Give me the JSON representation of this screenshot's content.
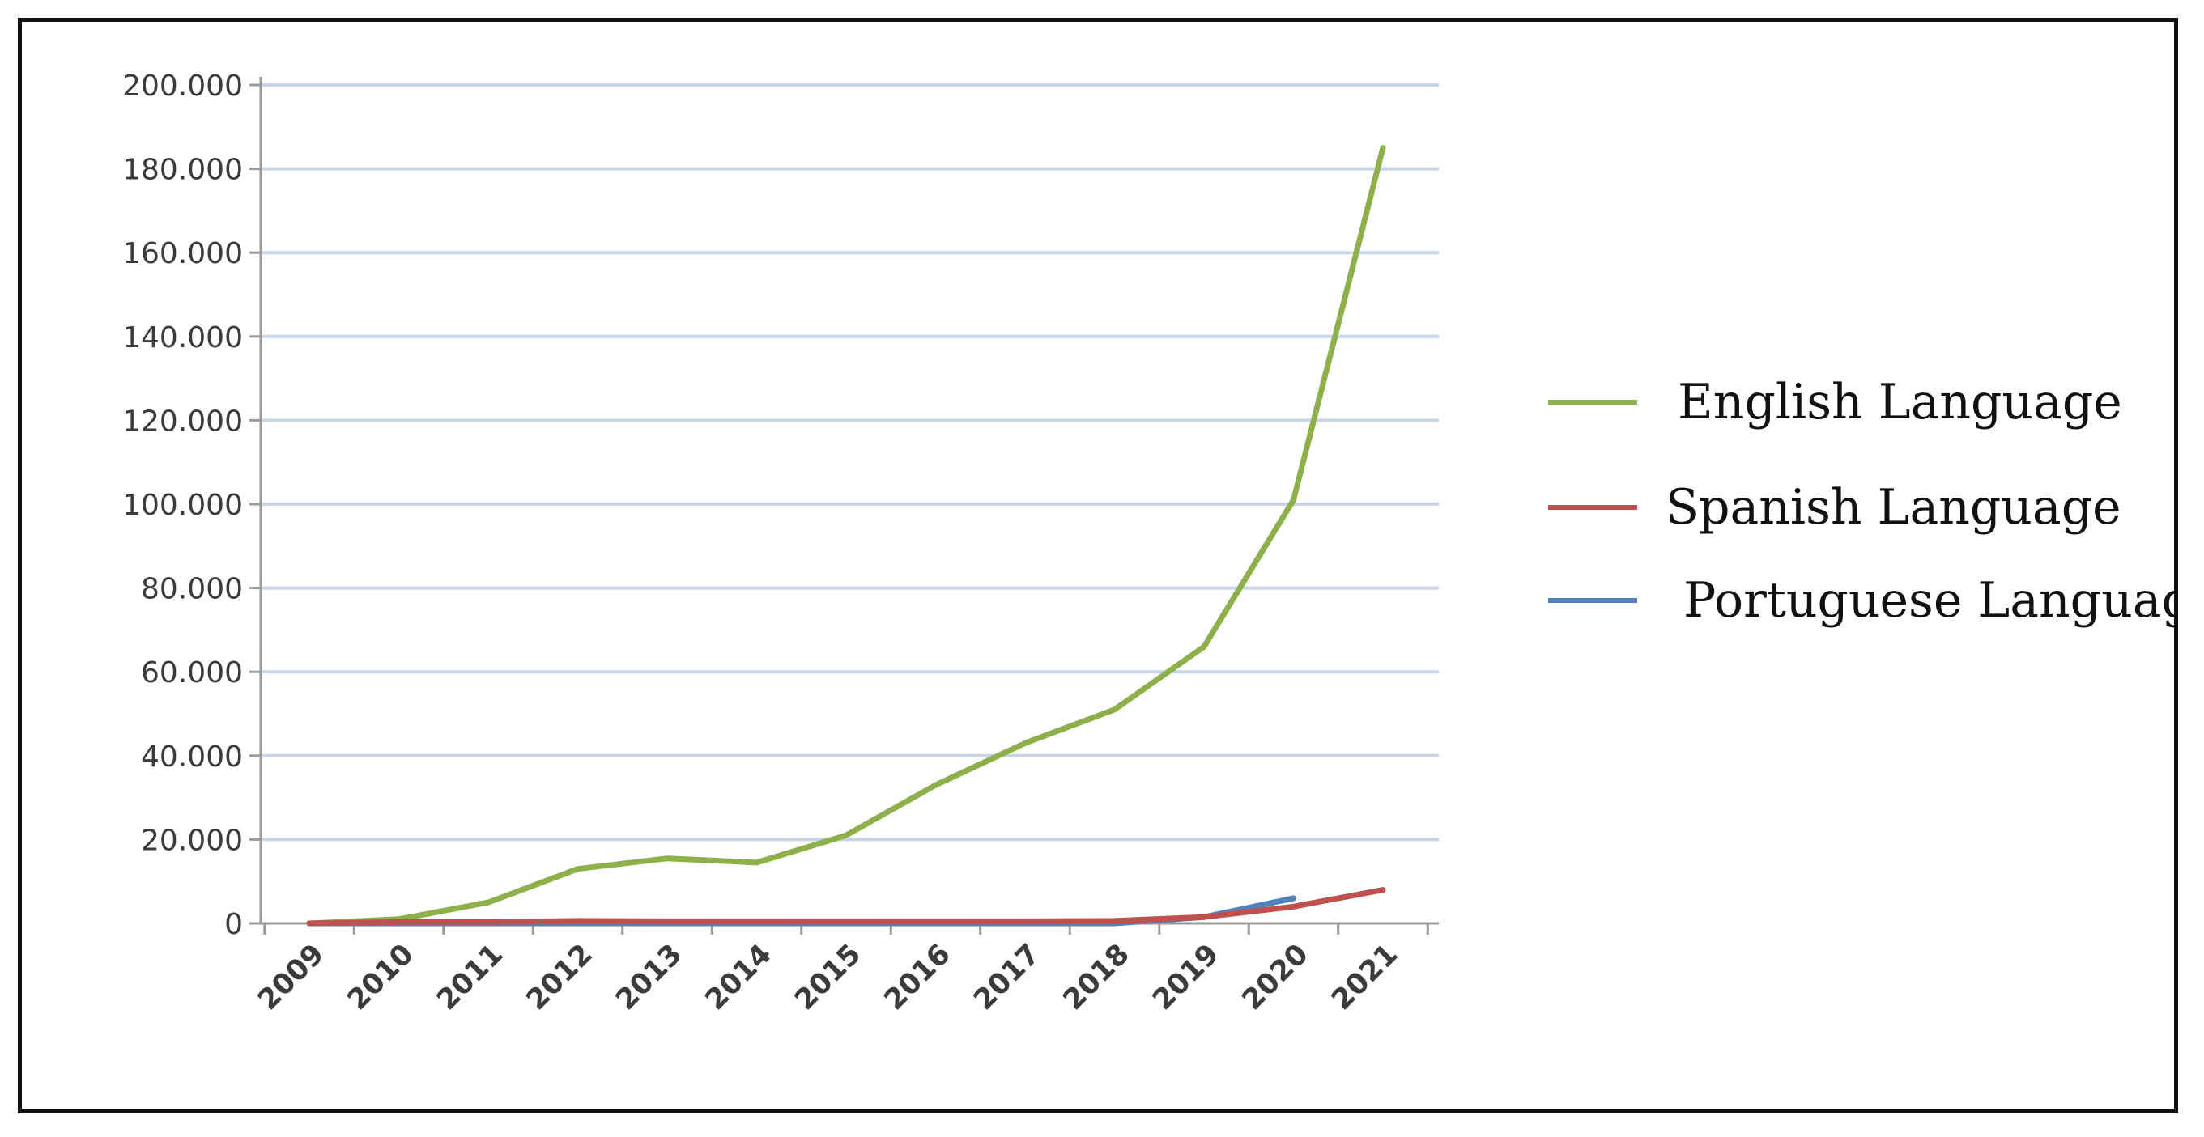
{
  "chart_data": {
    "type": "line",
    "title": "",
    "xlabel": "",
    "ylabel": "",
    "categories": [
      "2009",
      "2010",
      "2011",
      "2012",
      "2013",
      "2014",
      "2015",
      "2016",
      "2017",
      "2018",
      "2019",
      "2020",
      "2021"
    ],
    "y_ticks": [
      "0",
      "20.000",
      "40.000",
      "60.000",
      "80.000",
      "100.000",
      "120.000",
      "140.000",
      "160.000",
      "180.000",
      "200.000"
    ],
    "ylim": [
      0,
      200000
    ],
    "grid": true,
    "legend_position": "right",
    "series": [
      {
        "name": "English Language",
        "color": "#8db04a",
        "values": [
          0,
          1000,
          5000,
          13000,
          15500,
          14500,
          21000,
          33000,
          43000,
          51000,
          66000,
          101000,
          185000
        ]
      },
      {
        "name": "Spanish Language",
        "color": "#c0504d",
        "values": [
          0,
          300,
          300,
          600,
          500,
          500,
          500,
          500,
          500,
          600,
          1500,
          4000,
          8000
        ]
      },
      {
        "name": "Portuguese Language",
        "color": "#4f81bd",
        "values": [
          0,
          0,
          0,
          0,
          0,
          0,
          0,
          0,
          0,
          0,
          1500,
          6000,
          null
        ]
      }
    ]
  }
}
